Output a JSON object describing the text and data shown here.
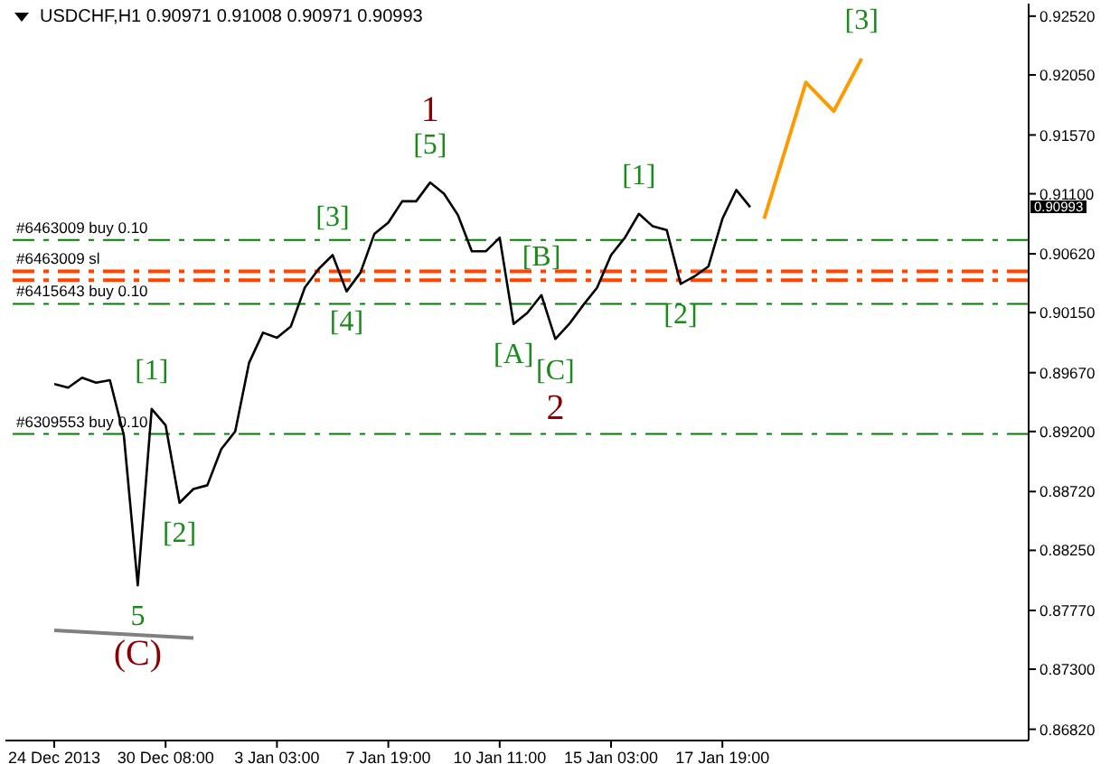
{
  "chart_data": {
    "type": "line",
    "title": "USDCHF,H1  0.90971 0.91008 0.90971 0.90993",
    "categories": [
      "24 Dec 2013",
      null,
      null,
      null,
      null,
      null,
      null,
      null,
      "30 Dec 08:00",
      null,
      null,
      null,
      null,
      null,
      null,
      null,
      "3 Jan 03:00",
      null,
      null,
      null,
      null,
      null,
      null,
      null,
      "7 Jan 19:00",
      null,
      null,
      null,
      null,
      null,
      null,
      null,
      "10 Jan 11:00",
      null,
      null,
      null,
      null,
      null,
      null,
      null,
      "15 Jan 03:00",
      null,
      null,
      null,
      null,
      null,
      null,
      null,
      "17 Jan 19:00",
      null,
      null,
      null,
      null,
      null,
      null,
      null,
      null,
      null,
      null,
      null,
      null,
      null,
      null,
      null,
      null,
      null,
      null,
      null,
      null,
      null,
      null
    ],
    "series": [
      {
        "color": "#000000",
        "values": [
          0.8958,
          0.8955,
          0.8963,
          0.8959,
          0.8961,
          0.8917,
          0.8797,
          0.8938,
          0.8925,
          0.8863,
          0.8874,
          0.8877,
          0.8906,
          0.892,
          0.8975,
          0.8999,
          0.8995,
          0.9004,
          0.9035,
          0.905,
          0.9061,
          0.9032,
          0.9047,
          0.9078,
          0.9087,
          0.9104,
          0.9104,
          0.9119,
          0.911,
          0.9093,
          0.9064,
          0.9064,
          0.9075,
          0.9006,
          0.9015,
          0.9029,
          0.8994,
          0.9006,
          0.9021,
          0.9035,
          0.9061,
          0.9075,
          0.9094,
          0.9084,
          0.9081,
          0.9038,
          0.9044,
          0.9052,
          0.909,
          0.9113,
          0.90993,
          null,
          null,
          null,
          null,
          null,
          null,
          null,
          null,
          null,
          null,
          null,
          null,
          null,
          null,
          null,
          null,
          null,
          null,
          null,
          null
        ]
      },
      {
        "color": "#ff9900",
        "values": [
          null,
          null,
          null,
          null,
          null,
          null,
          null,
          null,
          null,
          null,
          null,
          null,
          null,
          null,
          null,
          null,
          null,
          null,
          null,
          null,
          null,
          null,
          null,
          null,
          null,
          null,
          null,
          null,
          null,
          null,
          null,
          null,
          null,
          null,
          null,
          null,
          null,
          null,
          null,
          null,
          null,
          null,
          null,
          null,
          null,
          null,
          null,
          null,
          null,
          null,
          null,
          0.909,
          null,
          null,
          0.9199,
          null,
          0.9176,
          null,
          0.9218,
          null,
          null,
          null,
          null,
          null,
          null,
          null,
          null,
          null,
          null,
          null,
          null
        ]
      },
      {
        "color": "#808080",
        "values": [
          0.8761,
          null,
          null,
          null,
          null,
          null,
          null,
          null,
          null,
          null,
          0.8755,
          null,
          null,
          null,
          null,
          null,
          null,
          null,
          null,
          null,
          null,
          null,
          null,
          null,
          null,
          null,
          null,
          null,
          null,
          null,
          null,
          null,
          null,
          null,
          null,
          null,
          null,
          null,
          null,
          null,
          null,
          null,
          null,
          null,
          null,
          null,
          null,
          null,
          null,
          null,
          null,
          null,
          null,
          null,
          null,
          null,
          null,
          null,
          null,
          null,
          null,
          null,
          null,
          null,
          null,
          null,
          null,
          null,
          null,
          null,
          null
        ]
      }
    ],
    "ylim": [
      0.8673,
      0.9262
    ],
    "yticks": [
      {
        "value": 0.8682,
        "label": "0.86820"
      },
      {
        "value": 0.873,
        "label": "0.87300"
      },
      {
        "value": 0.8777,
        "label": "0.87770"
      },
      {
        "value": 0.8825,
        "label": "0.88250"
      },
      {
        "value": 0.8872,
        "label": "0.88720"
      },
      {
        "value": 0.892,
        "label": "0.89200"
      },
      {
        "value": 0.8967,
        "label": "0.89670"
      },
      {
        "value": 0.9015,
        "label": "0.90150"
      },
      {
        "value": 0.9062,
        "label": "0.90620"
      },
      {
        "value": 0.911,
        "label": "0.91100"
      },
      {
        "value": 0.9157,
        "label": "0.91570"
      },
      {
        "value": 0.9205,
        "label": "0.92050"
      },
      {
        "value": 0.9252,
        "label": "0.92520"
      }
    ],
    "ref_lines": [
      {
        "axis": "y",
        "value": 0.9073,
        "label": "#6463009 buy 0.10",
        "color": "#008000",
        "line_style": "dashed"
      },
      {
        "axis": "y",
        "value": 0.9048,
        "label": "#6463009 sl",
        "color": "#ff4500",
        "line_style": "dashed"
      },
      {
        "axis": "y",
        "value": 0.9041,
        "label": null,
        "color": "#ff4500",
        "line_style": "dashed"
      },
      {
        "axis": "y",
        "value": 0.9022,
        "label": "#6415643 buy 0.10",
        "color": "#008000",
        "line_style": "dashed"
      },
      {
        "axis": "y",
        "value": 0.8918,
        "label": "#6309553 buy 0.10",
        "color": "#008000",
        "line_style": "dashed"
      }
    ],
    "annotations": [
      {
        "text": "5",
        "y": 0.8797
      },
      {
        "text": "(C)",
        "y": 0.8797
      },
      {
        "text": "[1]",
        "y": 0.8938
      },
      {
        "text": "[2]",
        "y": 0.8863
      },
      {
        "text": "[3]",
        "y": 0.9061
      },
      {
        "text": "[4]",
        "y": 0.9032
      },
      {
        "text": "[5]",
        "y": 0.9119
      },
      {
        "text": "1",
        "y": 0.9119
      },
      {
        "text": "[A]",
        "y": 0.9006
      },
      {
        "text": "[B]",
        "y": 0.9029
      },
      {
        "text": "[C]",
        "y": 0.8994
      },
      {
        "text": "2",
        "y": 0.8994
      },
      {
        "text": "[1]",
        "y": 0.9094
      },
      {
        "text": "[2]",
        "y": 0.9038
      },
      {
        "text": "[3]",
        "y": 0.9218
      },
      "0.90993"
    ],
    "marker": "none",
    "line_style": "solid"
  }
}
